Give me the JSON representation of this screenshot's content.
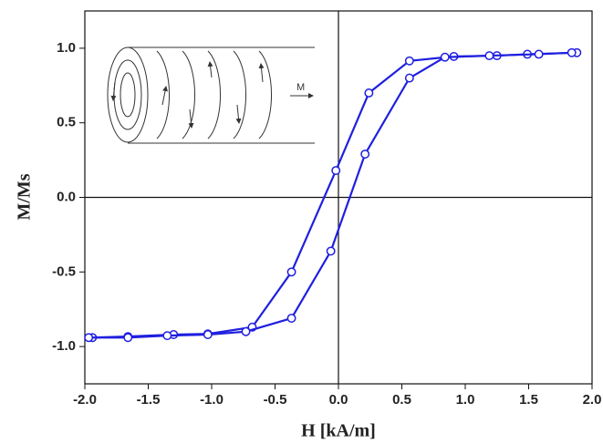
{
  "chart_data": {
    "type": "line",
    "xlabel": "H [kA/m]",
    "ylabel": "M/Ms",
    "inset_label": "M",
    "xlim": [
      -2.0,
      2.0
    ],
    "ylim": [
      -1.25,
      1.25
    ],
    "xticks": [
      {
        "value": -2.0,
        "label": "-2.0"
      },
      {
        "value": -1.5,
        "label": "-1.5"
      },
      {
        "value": -1.0,
        "label": "-1.0"
      },
      {
        "value": -0.5,
        "label": "-0.5"
      },
      {
        "value": 0.0,
        "label": "0.0"
      },
      {
        "value": 0.5,
        "label": "0.5"
      },
      {
        "value": 1.0,
        "label": "1.0"
      },
      {
        "value": 1.5,
        "label": "1.5"
      },
      {
        "value": 2.0,
        "label": "2.0"
      }
    ],
    "yticks": [
      {
        "value": -1.0,
        "label": "-1.0"
      },
      {
        "value": -0.5,
        "label": "-0.5"
      },
      {
        "value": 0.0,
        "label": "0.0"
      },
      {
        "value": 0.5,
        "label": "0.5"
      },
      {
        "value": 1.0,
        "label": "1.0"
      }
    ],
    "series": [
      {
        "color": "#1f1fe0",
        "x": [
          1.88,
          1.49,
          1.25,
          0.91,
          0.56,
          0.24,
          -0.02,
          -0.37,
          -0.68,
          -1.03,
          -1.3,
          -1.66,
          -1.94
        ],
        "values": [
          0.97,
          0.96,
          0.95,
          0.945,
          0.915,
          0.7,
          0.18,
          -0.5,
          -0.87,
          -0.915,
          -0.92,
          -0.933,
          -0.94
        ]
      },
      {
        "color": "#1f1fe0",
        "x": [
          -1.97,
          -1.66,
          -1.35,
          -1.03,
          -0.73,
          -0.37,
          -0.06,
          0.21,
          0.56,
          0.84,
          1.19,
          1.58,
          1.84
        ],
        "values": [
          -0.94,
          -0.94,
          -0.927,
          -0.92,
          -0.9,
          -0.81,
          -0.36,
          0.29,
          0.8,
          0.94,
          0.95,
          0.96,
          0.97
        ]
      }
    ]
  }
}
